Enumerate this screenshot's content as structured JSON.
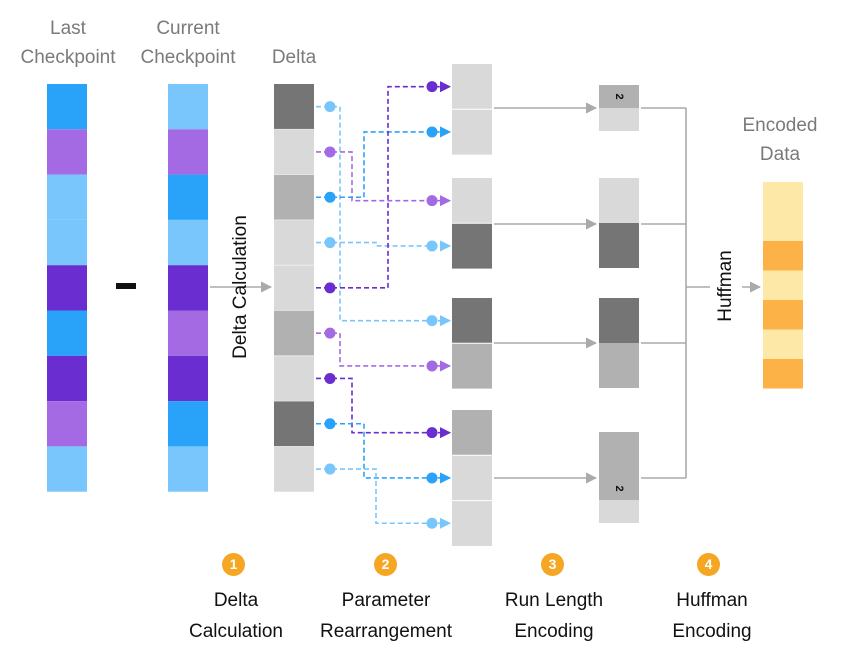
{
  "labels": {
    "last_checkpoint": "Last Checkpoint",
    "current_checkpoint": "Current Checkpoint",
    "delta": "Delta",
    "delta_calculation_vertical": "Delta Calculation",
    "huffman_vertical": "Huffman",
    "encoded_data": "Encoded Data",
    "run_length_value": "2"
  },
  "steps": [
    {
      "number": "1",
      "label": "Delta Calculation"
    },
    {
      "number": "2",
      "label": "Parameter Rearrangement"
    },
    {
      "number": "3",
      "label": "Run Length Encoding"
    },
    {
      "number": "4",
      "label": "Huffman Encoding"
    }
  ],
  "colors": {
    "blue": "#29a3fa",
    "light_blue": "#79c6fd",
    "purple": "#a36ae3",
    "dark_purple": "#6a2ed0",
    "dark_gray": "#757575",
    "mid_gray": "#b1b1b1",
    "light_gray": "#d9d9d9",
    "encoded_light": "#fde8a8",
    "encoded_orange": "#fdb247",
    "arrow_gray": "#aaaaaa",
    "step_orange": "#f5a623"
  },
  "columns": {
    "last_checkpoint": [
      "blue",
      "purple",
      "light_blue",
      "light_blue",
      "dark_purple",
      "blue",
      "dark_purple",
      "purple",
      "light_blue"
    ],
    "current_checkpoint": [
      "light_blue",
      "purple",
      "blue",
      "light_blue",
      "dark_purple",
      "purple",
      "dark_purple",
      "blue",
      "light_blue"
    ],
    "delta": [
      "dark_gray",
      "light_gray",
      "mid_gray",
      "light_gray",
      "light_gray",
      "mid_gray",
      "light_gray",
      "dark_gray",
      "light_gray"
    ],
    "encoded_data": [
      "encoded_light",
      "encoded_light",
      "encoded_orange",
      "encoded_light",
      "encoded_orange",
      "encoded_light",
      "encoded_orange"
    ]
  },
  "rearranged_groups": [
    [
      "light_gray",
      "light_gray"
    ],
    [
      "light_gray",
      "dark_gray"
    ],
    [
      "dark_gray",
      "mid_gray"
    ],
    [
      "mid_gray",
      "light_gray",
      "light_gray"
    ]
  ],
  "rle_groups": [
    [
      "mid_gray",
      "light_gray"
    ],
    [
      "light_gray",
      "dark_gray"
    ],
    [
      "dark_gray",
      "mid_gray"
    ],
    [
      "mid_gray",
      "mid_gray",
      "light_gray"
    ]
  ],
  "rearrangement_links": [
    {
      "from_delta_row": 0,
      "to_slot": 4
    },
    {
      "from_delta_row": 1,
      "to_slot": 2
    },
    {
      "from_delta_row": 2,
      "to_slot": 1
    },
    {
      "from_delta_row": 3,
      "to_slot": 3
    },
    {
      "from_delta_row": 4,
      "to_slot": 0
    },
    {
      "from_delta_row": 5,
      "to_slot": 5
    },
    {
      "from_delta_row": 6,
      "to_slot": 6
    },
    {
      "from_delta_row": 7,
      "to_slot": 7
    },
    {
      "from_delta_row": 8,
      "to_slot": 8
    }
  ]
}
